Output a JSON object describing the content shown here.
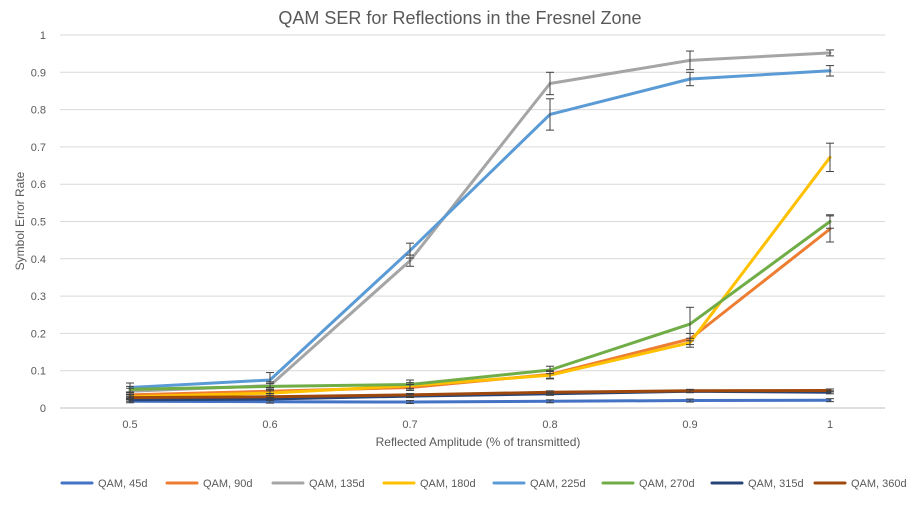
{
  "chart_data": {
    "type": "line",
    "title": "QAM SER for Reflections in the Fresnel Zone",
    "xlabel": "Reflected Amplitude (% of transmitted)",
    "ylabel": "Symbol Error Rate",
    "x": [
      0.5,
      0.6,
      0.7,
      0.8,
      0.9,
      1
    ],
    "x_tick_labels": [
      "0.5",
      "0.6",
      "0.7",
      "0.8",
      "0.9",
      "1"
    ],
    "y_ticks": [
      0,
      0.1,
      0.2,
      0.3,
      0.4,
      0.5,
      0.6,
      0.7,
      0.8,
      0.9,
      1
    ],
    "y_tick_labels": [
      "0",
      "0.1",
      "0.2",
      "0.3",
      "0.4",
      "0.5",
      "0.6",
      "0.7",
      "0.8",
      "0.9",
      "1"
    ],
    "ylim": [
      0,
      1
    ],
    "grid": true,
    "legend_position": "bottom",
    "series": [
      {
        "name": "QAM, 45d",
        "color": "#4472C4",
        "values": [
          0.018,
          0.017,
          0.016,
          0.018,
          0.02,
          0.021
        ],
        "errors": [
          0.004,
          0.004,
          0.004,
          0.004,
          0.004,
          0.004
        ]
      },
      {
        "name": "QAM, 90d",
        "color": "#ED7D31",
        "values": [
          0.035,
          0.045,
          0.055,
          0.09,
          0.185,
          0.48
        ],
        "errors": [
          0.006,
          0.006,
          0.008,
          0.01,
          0.015,
          0.035
        ]
      },
      {
        "name": "QAM, 135d",
        "color": "#A5A5A5",
        "values": [
          0.045,
          0.06,
          0.395,
          0.87,
          0.932,
          0.952
        ],
        "errors": [
          0.008,
          0.01,
          0.015,
          0.03,
          0.025,
          0.008
        ]
      },
      {
        "name": "QAM, 180d",
        "color": "#FFC000",
        "values": [
          0.03,
          0.04,
          0.06,
          0.088,
          0.175,
          0.672
        ],
        "errors": [
          0.006,
          0.006,
          0.008,
          0.01,
          0.012,
          0.038
        ]
      },
      {
        "name": "QAM, 225d",
        "color": "#5B9BD5",
        "values": [
          0.055,
          0.075,
          0.422,
          0.787,
          0.882,
          0.904
        ],
        "errors": [
          0.012,
          0.02,
          0.02,
          0.042,
          0.018,
          0.014
        ]
      },
      {
        "name": "QAM, 270d",
        "color": "#70AD47",
        "values": [
          0.05,
          0.058,
          0.063,
          0.102,
          0.225,
          0.5
        ],
        "errors": [
          0.008,
          0.008,
          0.012,
          0.01,
          0.045,
          0.018
        ]
      },
      {
        "name": "QAM, 315d",
        "color": "#264478",
        "values": [
          0.022,
          0.024,
          0.032,
          0.038,
          0.045,
          0.042
        ],
        "errors": [
          0.004,
          0.004,
          0.004,
          0.004,
          0.004,
          0.004
        ]
      },
      {
        "name": "QAM, 360d",
        "color": "#9E480E",
        "values": [
          0.028,
          0.03,
          0.035,
          0.042,
          0.046,
          0.047
        ],
        "errors": [
          0.004,
          0.004,
          0.004,
          0.004,
          0.004,
          0.004
        ]
      }
    ]
  }
}
